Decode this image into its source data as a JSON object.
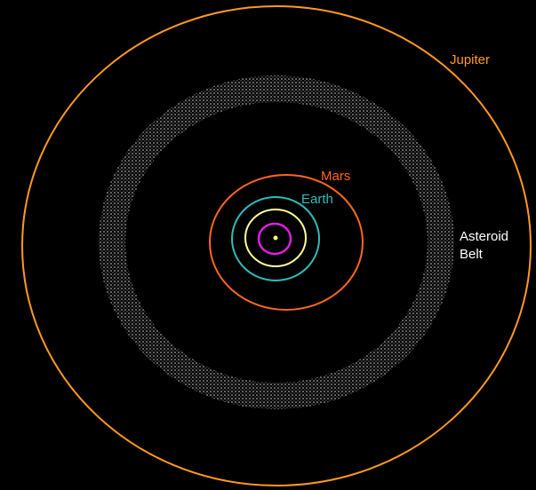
{
  "colors": {
    "background": "#000000",
    "sun": "#ffff66",
    "mercury": "#e020e0",
    "venus": "#ffff99",
    "earth": "#33bbbb",
    "mars": "#ff6622",
    "asteroid_belt": "#cfcfcf",
    "jupiter": "#ff9922",
    "label_text": "#ffffff"
  },
  "labels": {
    "jupiter": "Jupiter",
    "mars": "Mars",
    "earth": "Earth",
    "asteroid_belt_line1": "Asteroid",
    "asteroid_belt_line2": "Belt"
  }
}
